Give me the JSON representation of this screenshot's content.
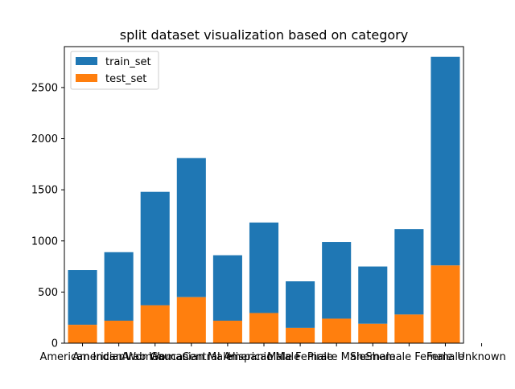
{
  "chart_data": {
    "type": "bar",
    "stacked": true,
    "title": "split dataset visualization based on category",
    "xlabel": "",
    "ylabel": "",
    "categories": [
      "American Indian",
      "American Woman",
      "Arab Woman",
      "Caucasian Male",
      "Central American",
      "Hispanic Male",
      "Male Female",
      "Pirate Male",
      "Shemale",
      "Shemale Female",
      "Female",
      "Unknown"
    ],
    "series": [
      {
        "name": "test_set",
        "color": "#ff7f0e",
        "values": [
          180,
          220,
          370,
          450,
          220,
          295,
          150,
          240,
          190,
          280,
          0,
          760
        ]
      },
      {
        "name": "train_set",
        "color": "#1f77b4",
        "values": [
          535,
          670,
          1110,
          1360,
          640,
          885,
          455,
          750,
          560,
          835,
          0,
          2040
        ]
      }
    ],
    "bar_values_rendered": [
      {
        "category": "American Indian",
        "test": 180,
        "total": 715
      },
      {
        "category": "American Woman",
        "test": 220,
        "total": 890
      },
      {
        "category": "Arab Woman",
        "test": 370,
        "total": 1480
      },
      {
        "category": "Caucasian Male",
        "test": 450,
        "total": 1810
      },
      {
        "category": "Central American",
        "test": 220,
        "total": 860
      },
      {
        "category": "Hispanic Male",
        "test": 295,
        "total": 1180
      },
      {
        "category": "Male Female",
        "test": 150,
        "total": 605
      },
      {
        "category": "Pirate Male",
        "test": 240,
        "total": 990
      },
      {
        "category": "Shemale",
        "test": 190,
        "total": 750
      },
      {
        "category": "Shemale Female",
        "test": 280,
        "total": 1115
      },
      {
        "category": "Unknown",
        "test": 760,
        "total": 2800
      }
    ],
    "ylim": [
      0,
      2900
    ],
    "yticks": [
      0,
      500,
      1000,
      1500,
      2000,
      2500
    ],
    "grid": false,
    "legend": {
      "position": "top-left",
      "entries": [
        "train_set",
        "test_set"
      ]
    }
  }
}
